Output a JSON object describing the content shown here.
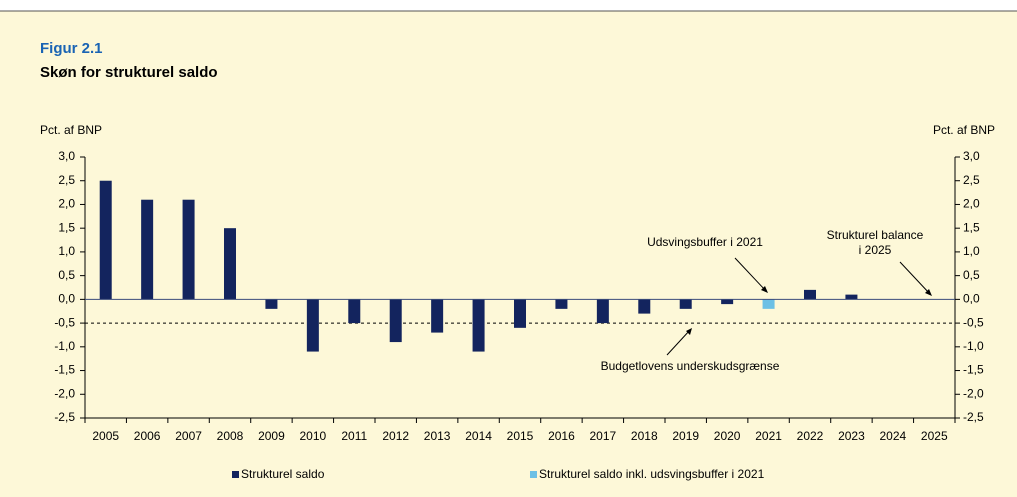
{
  "chart_data": {
    "type": "bar",
    "figure_label": "Figur 2.1",
    "title": "Skøn for strukturel saldo",
    "y_label": "Pct. af BNP",
    "y2_label": "Pct. af BNP",
    "categories": [
      "2005",
      "2006",
      "2007",
      "2008",
      "2009",
      "2010",
      "2011",
      "2012",
      "2013",
      "2014",
      "2015",
      "2016",
      "2017",
      "2018",
      "2019",
      "2020",
      "2021",
      "2022",
      "2023",
      "2024",
      "2025"
    ],
    "series": [
      {
        "name": "Strukturel saldo",
        "color": "#13245e",
        "values": [
          2.5,
          2.1,
          2.1,
          1.5,
          -0.2,
          -1.1,
          -0.5,
          -0.9,
          -0.7,
          -1.1,
          -0.6,
          -0.2,
          -0.5,
          -0.3,
          -0.2,
          -0.1,
          null,
          0.2,
          0.1,
          0,
          0
        ]
      },
      {
        "name": "Strukturel saldo inkl. udsvingsbuffer i 2021",
        "color": "#6cc0e5",
        "values": [
          null,
          null,
          null,
          null,
          null,
          null,
          null,
          null,
          null,
          null,
          null,
          null,
          null,
          null,
          null,
          null,
          -0.2,
          null,
          null,
          null,
          null
        ]
      }
    ],
    "ylim": [
      -2.5,
      3.0
    ],
    "y2lim": [
      -2.5,
      3.0
    ],
    "yticks": [
      {
        "value": 3.0,
        "label": "3,0"
      },
      {
        "value": 2.5,
        "label": "2,5"
      },
      {
        "value": 2.0,
        "label": "2,0"
      },
      {
        "value": 1.5,
        "label": "1,5"
      },
      {
        "value": 1.0,
        "label": "1,0"
      },
      {
        "value": 0.5,
        "label": "0,5"
      },
      {
        "value": 0.0,
        "label": "0,0"
      },
      {
        "value": -0.5,
        "label": "-0,5"
      },
      {
        "value": -1.0,
        "label": "-1,0"
      },
      {
        "value": -1.5,
        "label": "-1,5"
      },
      {
        "value": -2.0,
        "label": "-2,0"
      },
      {
        "value": -2.5,
        "label": "-2,5"
      }
    ],
    "y2ticks": [
      {
        "value": 3.0,
        "label": "3,0"
      },
      {
        "value": 2.5,
        "label": "2,5"
      },
      {
        "value": 2.0,
        "label": "2,0"
      },
      {
        "value": 1.5,
        "label": "1,5"
      },
      {
        "value": 1.0,
        "label": "1,0"
      },
      {
        "value": 0.5,
        "label": "0,5"
      },
      {
        "value": 0.0,
        "label": "0,0"
      },
      {
        "value": -0.5,
        "label": "-0,5"
      },
      {
        "value": -1.0,
        "label": "-1,0"
      },
      {
        "value": -1.5,
        "label": "-1,5"
      },
      {
        "value": -2.0,
        "label": "-2,0"
      },
      {
        "value": -2.5,
        "label": "-2,5"
      }
    ],
    "deficit_limit": -0.5,
    "annotations": {
      "buffer": "Udsvingsbuffer i 2021",
      "balance": [
        "Strukturel balance",
        "i 2025"
      ],
      "limit": "Budgetlovens underskudsgrænse"
    },
    "grid": false,
    "legend": "bottom"
  }
}
